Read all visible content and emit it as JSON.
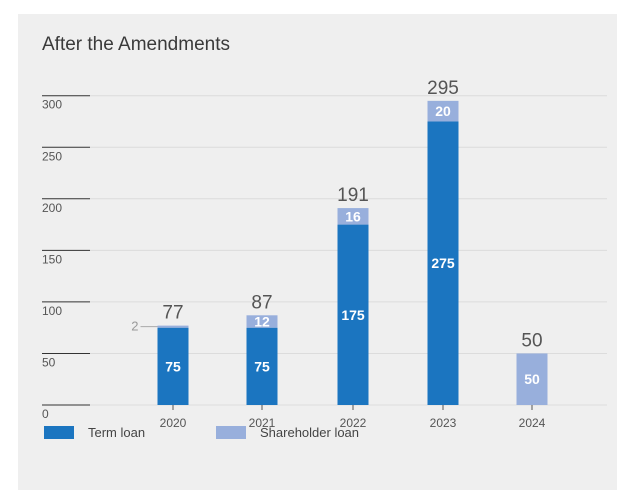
{
  "chart_data": {
    "type": "bar",
    "stacked": true,
    "title": "After the Amendments",
    "categories": [
      "2020",
      "2021",
      "2022",
      "2023",
      "2024"
    ],
    "series": [
      {
        "name": "Term loan",
        "color": "#1b75c0",
        "values": [
          75,
          75,
          175,
          275,
          0
        ]
      },
      {
        "name": "Shareholder loan",
        "color": "#98afdc",
        "values": [
          2,
          12,
          16,
          20,
          50
        ]
      }
    ],
    "segment_labels": [
      [
        "75",
        "75",
        "175",
        "275",
        ""
      ],
      [
        "2",
        "12",
        "16",
        "20",
        "50"
      ]
    ],
    "totals": [
      "77",
      "87",
      "191",
      "295",
      "50"
    ],
    "yticks": [
      "0",
      "50",
      "100",
      "150",
      "200",
      "250",
      "300"
    ],
    "ylim": [
      0,
      300
    ],
    "xlabel": "",
    "ylabel": "",
    "legend_position": "bottom-left",
    "grid": true
  }
}
